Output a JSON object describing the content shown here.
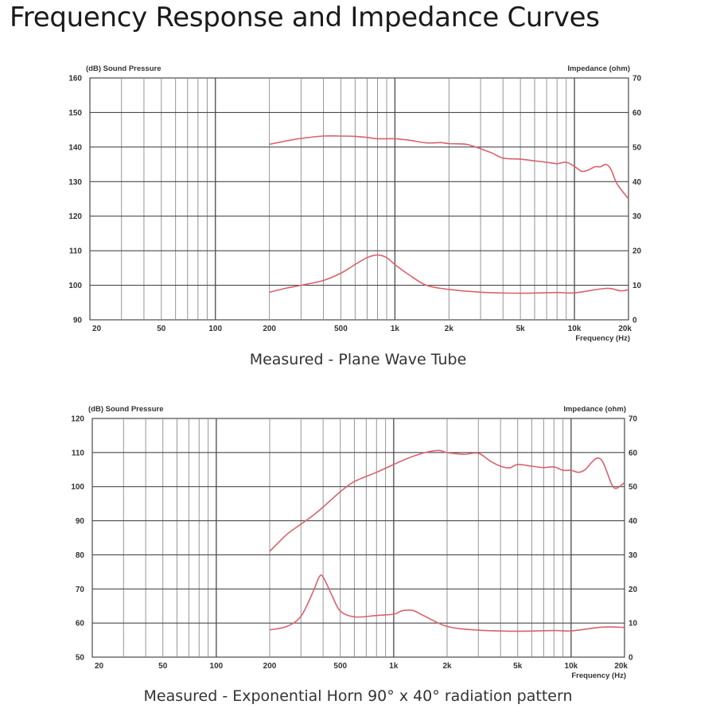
{
  "page": {
    "title": "Frequency Response and Impedance Curves"
  },
  "colors": {
    "curve": "#d9626b",
    "grid": "#4a4a4a",
    "minor_grid": "#8a8a8a"
  },
  "chart_data": [
    {
      "type": "line",
      "caption": "Measured - Plane Wave Tube",
      "left_axis_label": "(dB) Sound Pressure",
      "right_axis_label": "Impedance (ohm)",
      "x_axis_label": "Frequency (Hz)",
      "x_scale": "log",
      "xlim": [
        20,
        20000
      ],
      "ylim_left": [
        90,
        160
      ],
      "ylim_right": [
        0,
        70
      ],
      "x_ticks": [
        20,
        50,
        100,
        200,
        500,
        1000,
        2000,
        5000,
        10000,
        20000
      ],
      "x_tick_labels": [
        "20",
        "50",
        "100",
        "200",
        "500",
        "1k",
        "2k",
        "5k",
        "10k",
        "20k"
      ],
      "y_ticks_left": [
        "160",
        "150",
        "140",
        "130",
        "120",
        "110",
        "100",
        "90"
      ],
      "y_ticks_right": [
        "70",
        "60",
        "50",
        "40",
        "30",
        "20",
        "10",
        "0"
      ],
      "series": [
        {
          "axis": "left",
          "x": [
            200,
            250,
            300,
            400,
            500,
            600,
            700,
            800,
            1000,
            1200,
            1500,
            1800,
            2000,
            2500,
            3000,
            3500,
            4000,
            5000,
            6000,
            7000,
            8000,
            9000,
            10000,
            11000,
            12000,
            13000,
            14000,
            15000,
            16000,
            17000,
            18000,
            20000
          ],
          "y": [
            140.8,
            141.8,
            142.5,
            143.2,
            143.2,
            143.1,
            142.8,
            142.4,
            142.4,
            142,
            141.2,
            141.3,
            141,
            140.8,
            139.5,
            138.2,
            136.8,
            136.5,
            136,
            135.6,
            135.2,
            135.6,
            134.4,
            133,
            133.4,
            134.3,
            134.3,
            135,
            133.5,
            130,
            128,
            125
          ]
        },
        {
          "axis": "left",
          "x": [
            200,
            250,
            300,
            400,
            500,
            600,
            700,
            800,
            900,
            1000,
            1200,
            1500,
            2000,
            3000,
            5000,
            8000,
            10000,
            15000,
            18000,
            20000
          ],
          "y": [
            98,
            99.2,
            100,
            101.4,
            103.5,
            106,
            108,
            108.8,
            108,
            106,
            103,
            100,
            98.8,
            98,
            97.7,
            97.9,
            97.8,
            99.1,
            98.4,
            98.7
          ]
        }
      ]
    },
    {
      "type": "line",
      "caption": "Measured - Exponential Horn 90° x 40° radiation pattern",
      "left_axis_label": "(dB) Sound Pressure",
      "right_axis_label": "Impedance (ohm)",
      "x_axis_label": "Frequency (Hz)",
      "x_scale": "log",
      "xlim": [
        20,
        20000
      ],
      "ylim_left": [
        50,
        120
      ],
      "ylim_right": [
        0,
        70
      ],
      "x_ticks": [
        20,
        50,
        100,
        200,
        500,
        1000,
        2000,
        5000,
        10000,
        20000
      ],
      "x_tick_labels": [
        "20",
        "50",
        "100",
        "200",
        "500",
        "1k",
        "2k",
        "5k",
        "10k",
        "20k"
      ],
      "y_ticks_left": [
        "120",
        "110",
        "100",
        "90",
        "80",
        "70",
        "60",
        "50"
      ],
      "y_ticks_right": [
        "70",
        "60",
        "50",
        "40",
        "30",
        "20",
        "10",
        "0"
      ],
      "series": [
        {
          "axis": "left",
          "x": [
            200,
            250,
            300,
            350,
            400,
            500,
            600,
            800,
            1000,
            1200,
            1500,
            1800,
            2000,
            2500,
            3000,
            3500,
            4000,
            4500,
            5000,
            6000,
            7000,
            8000,
            9000,
            10000,
            11000,
            12000,
            13000,
            14000,
            15000,
            16000,
            17000,
            18000,
            20000
          ],
          "y": [
            81,
            86,
            89,
            91.5,
            94,
            98.5,
            101.5,
            104.2,
            106.5,
            108.3,
            110,
            110.6,
            110,
            109.5,
            109.8,
            107.5,
            106,
            105.5,
            106.5,
            106,
            105.6,
            105.8,
            104.8,
            104.8,
            104.2,
            105,
            107,
            108.4,
            107.5,
            104,
            100.5,
            99.5,
            101.2
          ]
        },
        {
          "axis": "left",
          "x": [
            200,
            250,
            300,
            350,
            380,
            400,
            450,
            500,
            600,
            800,
            1000,
            1100,
            1200,
            1300,
            1500,
            2000,
            3000,
            5000,
            8000,
            10000,
            15000,
            20000
          ],
          "y": [
            58,
            59,
            62,
            69,
            73.5,
            73.5,
            68,
            63.5,
            61.8,
            62.2,
            62.6,
            63.5,
            63.8,
            63.6,
            62,
            59,
            57.9,
            57.6,
            57.8,
            57.7,
            58.8,
            58.7
          ]
        }
      ]
    }
  ]
}
